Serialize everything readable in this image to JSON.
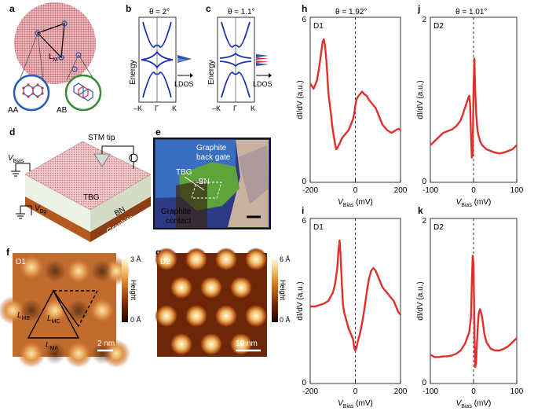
{
  "panels": {
    "a": {
      "label": "a",
      "lm": "L",
      "lm_sub": "M",
      "aa": "AA",
      "ab": "AB"
    },
    "b": {
      "label": "b",
      "title": "θ ≈ 2°",
      "ylabel": "Energy",
      "ldos": "LDOS",
      "ticks": [
        "–K",
        "Γ",
        "K"
      ]
    },
    "c": {
      "label": "c",
      "title": "θ ≈ 1.1°",
      "ylabel": "Energy",
      "ldos": "LDOS",
      "ticks": [
        "–K",
        "Γ",
        "K"
      ]
    },
    "d": {
      "label": "d",
      "stm": "STM tip",
      "vbias": "V",
      "vbias_sub": "Bias",
      "vbg": "V",
      "vbg_sub": "Bg",
      "tbg": "TBG",
      "bn": "BN",
      "graphite": "Graphite"
    },
    "e": {
      "label": "e",
      "graphite_gate": "Graphite",
      "back_gate": "back gate",
      "tbg": "TBG",
      "bn": "BN",
      "contact1": "Graphite",
      "contact2": "contact"
    },
    "f": {
      "label": "f",
      "device": "D1",
      "cbar_top": "3 Å",
      "cbar_bottom": "0 Å",
      "cbar_label": "Height",
      "lmb": "L",
      "lmb_sub": "MB",
      "lmc": "L",
      "lmc_sub": "MC",
      "lma": "L",
      "lma_sub": "MA",
      "scale": "2 nm"
    },
    "g": {
      "label": "g",
      "device": "D2",
      "cbar_top": "6 Å",
      "cbar_bottom": "0 Å",
      "cbar_label": "Height",
      "scale": "10 nm"
    }
  },
  "headers": {
    "theta_d1": "θ = 1.92°",
    "theta_d2": "θ = 1.01°"
  },
  "chart_data": [
    {
      "panel": "h",
      "type": "line",
      "device": "D1",
      "xlabel": "V",
      "xlabel_sub": "Bias",
      "xunit": "(mV)",
      "ylabel": "dI/dV (a.u.)",
      "xlim": [
        -200,
        200
      ],
      "ylim": [
        0,
        6
      ],
      "yticks": [
        "6",
        "0"
      ],
      "xticks": [
        "-200",
        "0",
        "200"
      ],
      "color": "#e0302a",
      "x": [
        -200,
        -185,
        -170,
        -160,
        -150,
        -145,
        -140,
        -135,
        -130,
        -125,
        -120,
        -110,
        -100,
        -90,
        -85,
        -80,
        -70,
        -60,
        -50,
        -45,
        -40,
        -30,
        -20,
        -10,
        -5,
        0,
        5,
        10,
        20,
        30,
        40,
        50,
        60,
        70,
        80,
        90,
        100,
        110,
        120,
        130,
        140,
        150,
        160,
        170,
        180,
        190,
        200
      ],
      "y": [
        3.6,
        3.4,
        3.7,
        4.2,
        4.8,
        5.1,
        5.2,
        5.0,
        4.6,
        4.0,
        3.3,
        2.6,
        1.9,
        1.4,
        1.2,
        1.25,
        1.4,
        1.6,
        1.7,
        1.75,
        1.8,
        1.9,
        2.1,
        2.3,
        2.5,
        2.8,
        3.0,
        3.1,
        3.2,
        3.3,
        3.2,
        3.15,
        3.0,
        2.9,
        2.8,
        2.7,
        2.5,
        2.3,
        2.1,
        2.0,
        1.9,
        1.85,
        1.8,
        1.85,
        1.9,
        1.95,
        1.9
      ]
    },
    {
      "panel": "j",
      "type": "line",
      "device": "D2",
      "xlabel": "V",
      "xlabel_sub": "Bias",
      "xunit": "(mV)",
      "ylabel": "dI/dV (a.u.)",
      "xlim": [
        -100,
        100
      ],
      "ylim": [
        0,
        2
      ],
      "yticks": [
        "2",
        "0"
      ],
      "xticks": [
        "-100",
        "0",
        "100"
      ],
      "color": "#e0302a",
      "x": [
        -100,
        -90,
        -80,
        -70,
        -60,
        -50,
        -40,
        -30,
        -25,
        -20,
        -15,
        -10,
        -8,
        -6,
        -4,
        -2,
        0,
        2,
        4,
        6,
        8,
        10,
        15,
        20,
        30,
        40,
        50,
        60,
        70,
        80,
        90,
        100
      ],
      "y": [
        0.45,
        0.5,
        0.55,
        0.6,
        0.62,
        0.64,
        0.68,
        0.75,
        0.82,
        0.9,
        0.98,
        1.05,
        0.95,
        0.6,
        0.3,
        0.35,
        1.15,
        1.5,
        1.1,
        0.85,
        0.7,
        0.6,
        0.5,
        0.45,
        0.4,
        0.38,
        0.36,
        0.35,
        0.36,
        0.38,
        0.4,
        0.45
      ]
    },
    {
      "panel": "i",
      "type": "line",
      "device": "D1",
      "xlabel": "V",
      "xlabel_sub": "Bias",
      "xunit": "(mV)",
      "ylabel": "dI/dV (a.u.)",
      "xlim": [
        -200,
        200
      ],
      "ylim": [
        0,
        6
      ],
      "yticks": [
        "6",
        "0"
      ],
      "xticks": [
        "-200",
        "0",
        "200"
      ],
      "color": "#e0302a",
      "x": [
        -200,
        -180,
        -160,
        -140,
        -120,
        -100,
        -90,
        -80,
        -75,
        -70,
        -65,
        -60,
        -55,
        -50,
        -40,
        -30,
        -20,
        -10,
        -5,
        0,
        5,
        10,
        20,
        30,
        40,
        50,
        60,
        70,
        80,
        90,
        100,
        110,
        120,
        130,
        140,
        150,
        160,
        170,
        180,
        190,
        200
      ],
      "y": [
        2.8,
        2.8,
        2.85,
        2.9,
        3.0,
        3.3,
        3.6,
        4.2,
        4.8,
        5.2,
        4.6,
        3.6,
        2.9,
        2.6,
        2.3,
        2.0,
        1.8,
        1.6,
        1.3,
        1.2,
        1.3,
        1.5,
        1.8,
        2.2,
        2.7,
        3.3,
        3.8,
        4.1,
        4.2,
        4.1,
        3.9,
        3.7,
        3.5,
        3.4,
        3.3,
        3.2,
        3.1,
        3.0,
        2.8,
        2.6,
        2.5
      ]
    },
    {
      "panel": "k",
      "type": "line",
      "device": "D2",
      "xlabel": "V",
      "xlabel_sub": "Bias",
      "xunit": "(mV)",
      "ylabel": "dI/dV (a.u.)",
      "xlim": [
        -100,
        100
      ],
      "ylim": [
        0,
        2
      ],
      "yticks": [
        "2",
        "0"
      ],
      "xticks": [
        "-100",
        "0",
        "100"
      ],
      "color": "#e0302a",
      "x": [
        -100,
        -90,
        -80,
        -70,
        -60,
        -50,
        -40,
        -30,
        -20,
        -15,
        -10,
        -6,
        -4,
        -2,
        0,
        2,
        4,
        6,
        8,
        10,
        12,
        15,
        18,
        20,
        25,
        30,
        40,
        50,
        60,
        70,
        80,
        90,
        100
      ],
      "y": [
        0.35,
        0.32,
        0.32,
        0.33,
        0.33,
        0.34,
        0.36,
        0.4,
        0.48,
        0.55,
        0.62,
        0.8,
        1.2,
        1.55,
        1.45,
        0.6,
        0.2,
        0.25,
        0.5,
        0.7,
        0.85,
        0.9,
        0.85,
        0.8,
        0.6,
        0.5,
        0.42,
        0.4,
        0.4,
        0.42,
        0.45,
        0.5,
        0.55
      ]
    }
  ]
}
